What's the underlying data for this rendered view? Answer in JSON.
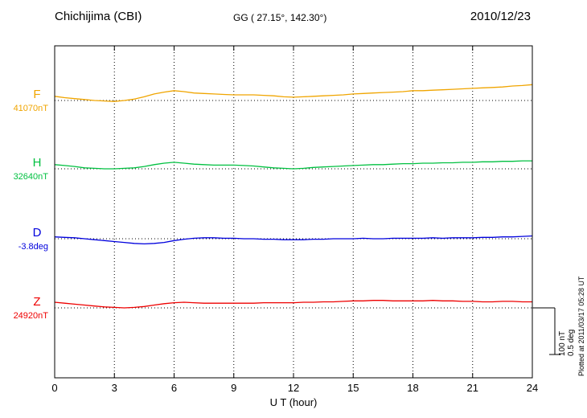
{
  "header": {
    "station": "Chichijima (CBI)",
    "coordinates": "GG ( 27.15°, 142.30°)",
    "date": "2010/12/23"
  },
  "axis": {
    "x_label": "U T (hour)",
    "x_ticks": [
      0,
      3,
      6,
      9,
      12,
      15,
      18,
      21,
      24
    ],
    "x_range": [
      0,
      24
    ]
  },
  "scale_bar": {
    "labels": [
      "100 nT",
      "0.5 deg"
    ],
    "nT_per_bar": 100,
    "deg_per_bar": 0.5
  },
  "footer_note": "Plotted at 2011/03/17 05:28 UT",
  "chart_data": {
    "type": "line",
    "title": "Chichijima (CBI) magnetogram 2010/12/23",
    "xlabel": "U T (hour)",
    "x_start": 0,
    "x_step": 0.5,
    "x_end": 24,
    "values_are": "offset from baseline_value in series unit",
    "series": [
      {
        "name": "F",
        "baseline_label": "41070nT",
        "baseline_value": 41070,
        "unit": "nT",
        "scale_per_bar": 100,
        "color": "#f0a500",
        "values": [
          9,
          6,
          4,
          2,
          0,
          -1,
          -2,
          0,
          3,
          8,
          14,
          18,
          21,
          19,
          16,
          15,
          14,
          13,
          12,
          12,
          12,
          11,
          10,
          8,
          7,
          8,
          9,
          10,
          11,
          12,
          14,
          15,
          16,
          17,
          18,
          19,
          21,
          21,
          22,
          23,
          24,
          25,
          26,
          27,
          28,
          29,
          31,
          32,
          34
        ]
      },
      {
        "name": "H",
        "baseline_label": "32640nT",
        "baseline_value": 32640,
        "unit": "nT",
        "scale_per_bar": 100,
        "color": "#00c040",
        "values": [
          9,
          7,
          5,
          2,
          1,
          0,
          0,
          1,
          2,
          5,
          9,
          12,
          14,
          12,
          10,
          9,
          8,
          8,
          8,
          7,
          6,
          4,
          2,
          1,
          0,
          1,
          3,
          4,
          5,
          6,
          7,
          8,
          9,
          9,
          10,
          11,
          11,
          12,
          12,
          13,
          13,
          14,
          14,
          15,
          15,
          16,
          16,
          17,
          17
        ]
      },
      {
        "name": "D",
        "baseline_label": "-3.8deg",
        "baseline_value": -3.8,
        "unit": "deg",
        "scale_per_bar": 0.5,
        "color": "#0000dd",
        "values": [
          0.02,
          0.015,
          0.01,
          0,
          -0.01,
          -0.02,
          -0.03,
          -0.04,
          -0.05,
          -0.055,
          -0.05,
          -0.04,
          -0.02,
          -0.005,
          0.005,
          0.01,
          0.01,
          0.005,
          0.005,
          0,
          0,
          -0.005,
          -0.005,
          -0.01,
          -0.01,
          -0.01,
          -0.005,
          -0.005,
          0,
          0,
          0,
          0.005,
          0,
          0,
          0.005,
          0.005,
          0.005,
          0.005,
          0.01,
          0.005,
          0.01,
          0.01,
          0.01,
          0.015,
          0.015,
          0.02,
          0.02,
          0.025,
          0.03
        ]
      },
      {
        "name": "Z",
        "baseline_label": "24920nT",
        "baseline_value": 24920,
        "unit": "nT",
        "scale_per_bar": 100,
        "color": "#ee0000",
        "values": [
          12,
          10,
          8,
          6,
          4,
          2,
          1,
          0,
          1,
          3,
          6,
          9,
          11,
          12,
          11,
          10,
          10,
          10,
          10,
          10,
          10,
          11,
          11,
          11,
          11,
          12,
          12,
          13,
          13,
          14,
          15,
          15,
          16,
          16,
          15,
          15,
          15,
          15,
          16,
          15,
          15,
          14,
          14,
          13,
          13,
          14,
          14,
          13,
          13
        ]
      }
    ]
  }
}
